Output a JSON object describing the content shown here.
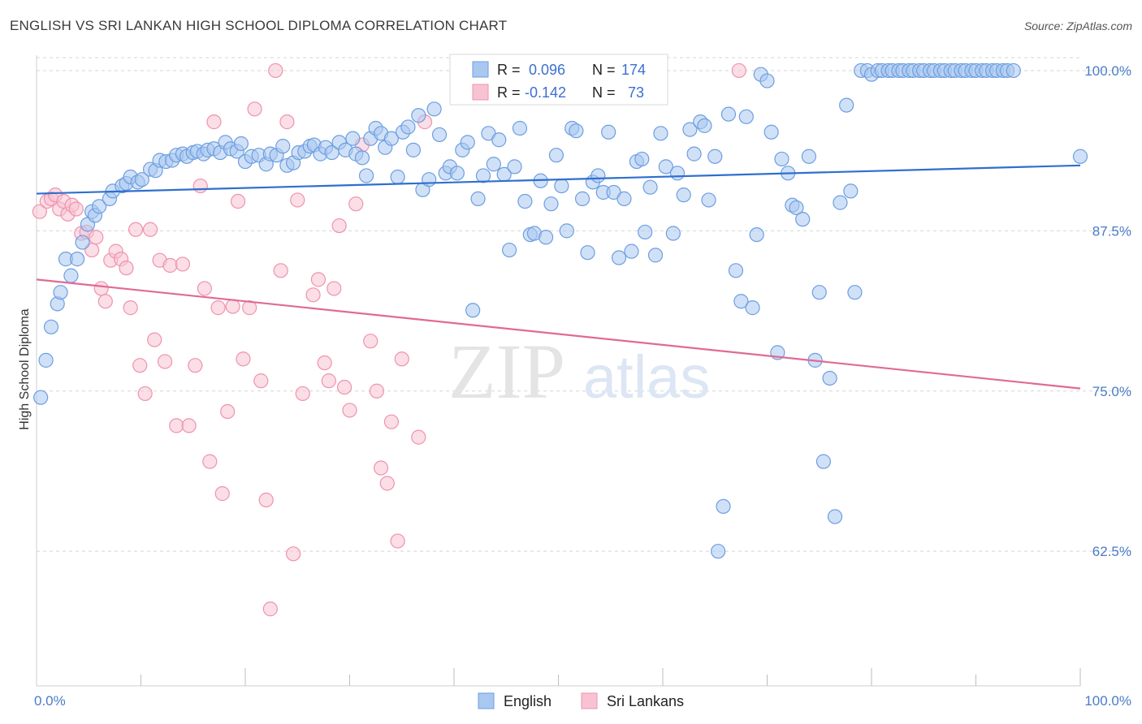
{
  "title": "ENGLISH VS SRI LANKAN HIGH SCHOOL DIPLOMA CORRELATION CHART",
  "source": "Source: ZipAtlas.com",
  "watermark": {
    "zip": "ZIP",
    "atlas": "atlas"
  },
  "legend_top": {
    "english": {
      "r_label": "R =",
      "r_value": "0.096",
      "n_label": "N =",
      "n_value": "174"
    },
    "srilankan": {
      "r_label": "R =",
      "r_value": "-0.142",
      "n_label": "N =",
      "n_value": "73"
    }
  },
  "legend_bottom": {
    "english": "English",
    "srilankan": "Sri Lankans"
  },
  "colors": {
    "english_fill": "#a9c8f0",
    "english_stroke": "#6d9ee0",
    "english_line": "#2f6fcf",
    "srilankan_fill": "#f7c3d2",
    "srilankan_stroke": "#ee93ae",
    "srilankan_line": "#e06a94",
    "tick_text": "#4a7cc7",
    "grid": "#d5d5d5"
  },
  "chart_data": {
    "type": "scatter",
    "title": "ENGLISH VS SRI LANKAN HIGH SCHOOL DIPLOMA CORRELATION CHART",
    "xlabel": "",
    "ylabel": "High School Diploma",
    "xlim": [
      0,
      100
    ],
    "ylim": [
      52,
      101.2
    ],
    "x_tick_labels": [
      "0.0%",
      "100.0%"
    ],
    "y_ticks": [
      100,
      87.5,
      75,
      62.5
    ],
    "y_tick_labels": [
      "100.0%",
      "87.5%",
      "75.0%",
      "62.5%"
    ],
    "grid": true,
    "legend_position": "top-center",
    "series": [
      {
        "name": "English",
        "r": 0.096,
        "n": 174,
        "trend": {
          "x": [
            0,
            100
          ],
          "y": [
            90.4,
            92.6
          ]
        },
        "points": [
          [
            0.4,
            74.5
          ],
          [
            0.9,
            77.4
          ],
          [
            1.4,
            80.0
          ],
          [
            2.0,
            81.8
          ],
          [
            2.3,
            82.7
          ],
          [
            2.8,
            85.3
          ],
          [
            3.3,
            84.0
          ],
          [
            3.9,
            85.3
          ],
          [
            4.4,
            86.6
          ],
          [
            4.9,
            88.0
          ],
          [
            5.3,
            89.0
          ],
          [
            5.6,
            88.7
          ],
          [
            6.0,
            89.4
          ],
          [
            7.0,
            90.0
          ],
          [
            7.3,
            90.6
          ],
          [
            8.2,
            91.0
          ],
          [
            8.6,
            91.2
          ],
          [
            9.0,
            91.7
          ],
          [
            9.7,
            91.3
          ],
          [
            10.1,
            91.5
          ],
          [
            10.9,
            92.3
          ],
          [
            11.4,
            92.2
          ],
          [
            11.8,
            93.0
          ],
          [
            12.4,
            92.9
          ],
          [
            13.0,
            93.0
          ],
          [
            13.4,
            93.4
          ],
          [
            14.0,
            93.5
          ],
          [
            14.4,
            93.3
          ],
          [
            15.0,
            93.6
          ],
          [
            15.4,
            93.7
          ],
          [
            16.0,
            93.5
          ],
          [
            16.4,
            93.8
          ],
          [
            17.0,
            93.9
          ],
          [
            17.6,
            93.6
          ],
          [
            18.1,
            94.4
          ],
          [
            18.6,
            93.9
          ],
          [
            19.2,
            93.7
          ],
          [
            19.6,
            94.3
          ],
          [
            20.0,
            92.9
          ],
          [
            20.6,
            93.3
          ],
          [
            21.3,
            93.4
          ],
          [
            22.0,
            92.7
          ],
          [
            22.4,
            93.5
          ],
          [
            23.0,
            93.4
          ],
          [
            23.6,
            94.1
          ],
          [
            24.0,
            92.6
          ],
          [
            24.6,
            92.8
          ],
          [
            25.1,
            93.6
          ],
          [
            25.7,
            93.7
          ],
          [
            26.2,
            94.1
          ],
          [
            26.6,
            94.2
          ],
          [
            27.2,
            93.5
          ],
          [
            27.7,
            94.0
          ],
          [
            28.3,
            93.6
          ],
          [
            29.0,
            94.4
          ],
          [
            29.6,
            93.8
          ],
          [
            30.3,
            94.7
          ],
          [
            30.6,
            93.5
          ],
          [
            31.2,
            93.2
          ],
          [
            31.6,
            91.8
          ],
          [
            32.0,
            94.7
          ],
          [
            32.5,
            95.5
          ],
          [
            33.0,
            95.1
          ],
          [
            33.4,
            94.0
          ],
          [
            34.0,
            94.7
          ],
          [
            34.6,
            91.7
          ],
          [
            35.1,
            95.2
          ],
          [
            35.6,
            95.6
          ],
          [
            36.1,
            93.8
          ],
          [
            36.6,
            96.5
          ],
          [
            37.0,
            90.7
          ],
          [
            37.6,
            91.5
          ],
          [
            38.1,
            97.0
          ],
          [
            38.6,
            95.0
          ],
          [
            39.2,
            92.0
          ],
          [
            39.6,
            92.5
          ],
          [
            40.3,
            92.0
          ],
          [
            40.8,
            93.8
          ],
          [
            41.3,
            94.4
          ],
          [
            41.8,
            81.3
          ],
          [
            42.3,
            90.0
          ],
          [
            42.8,
            91.8
          ],
          [
            43.3,
            95.1
          ],
          [
            43.8,
            92.7
          ],
          [
            44.3,
            94.6
          ],
          [
            44.8,
            91.9
          ],
          [
            45.3,
            86.0
          ],
          [
            45.8,
            92.5
          ],
          [
            46.3,
            95.5
          ],
          [
            46.8,
            89.8
          ],
          [
            47.3,
            87.2
          ],
          [
            47.7,
            87.3
          ],
          [
            48.3,
            91.4
          ],
          [
            48.8,
            87.0
          ],
          [
            49.3,
            89.6
          ],
          [
            49.8,
            93.4
          ],
          [
            50.3,
            91.0
          ],
          [
            50.8,
            87.5
          ],
          [
            51.3,
            95.5
          ],
          [
            51.7,
            95.3
          ],
          [
            52.3,
            90.0
          ],
          [
            52.8,
            85.8
          ],
          [
            53.3,
            91.3
          ],
          [
            53.8,
            91.8
          ],
          [
            54.3,
            90.5
          ],
          [
            54.8,
            95.2
          ],
          [
            55.3,
            90.5
          ],
          [
            55.8,
            85.4
          ],
          [
            56.3,
            90.0
          ],
          [
            57.0,
            85.9
          ],
          [
            57.5,
            92.9
          ],
          [
            58.0,
            93.1
          ],
          [
            58.3,
            87.4
          ],
          [
            58.8,
            90.9
          ],
          [
            59.3,
            85.6
          ],
          [
            59.8,
            95.1
          ],
          [
            60.3,
            92.5
          ],
          [
            61.0,
            87.3
          ],
          [
            61.4,
            92.0
          ],
          [
            62.0,
            90.3
          ],
          [
            62.6,
            95.4
          ],
          [
            63.0,
            93.5
          ],
          [
            63.6,
            96.0
          ],
          [
            64.0,
            95.7
          ],
          [
            64.4,
            89.9
          ],
          [
            65.0,
            93.3
          ],
          [
            65.3,
            62.5
          ],
          [
            65.8,
            66.0
          ],
          [
            66.3,
            96.6
          ],
          [
            67.0,
            84.4
          ],
          [
            67.5,
            82.0
          ],
          [
            68.0,
            96.4
          ],
          [
            68.6,
            81.5
          ],
          [
            69.0,
            87.2
          ],
          [
            69.4,
            99.7
          ],
          [
            70.0,
            99.2
          ],
          [
            70.4,
            95.2
          ],
          [
            71.0,
            78.0
          ],
          [
            71.4,
            93.1
          ],
          [
            72.0,
            92.0
          ],
          [
            72.4,
            89.5
          ],
          [
            72.8,
            89.3
          ],
          [
            73.4,
            88.4
          ],
          [
            74.0,
            93.3
          ],
          [
            74.6,
            77.4
          ],
          [
            75.0,
            82.7
          ],
          [
            75.4,
            69.5
          ],
          [
            76.0,
            76.0
          ],
          [
            76.5,
            65.2
          ],
          [
            77.0,
            89.7
          ],
          [
            77.6,
            97.3
          ],
          [
            78.0,
            90.6
          ],
          [
            78.4,
            82.7
          ],
          [
            79.0,
            100.0
          ],
          [
            79.6,
            100.0
          ],
          [
            80.0,
            99.7
          ],
          [
            80.6,
            100.0
          ],
          [
            81.0,
            100.0
          ],
          [
            81.6,
            100.0
          ],
          [
            82.0,
            100.0
          ],
          [
            82.6,
            100.0
          ],
          [
            83.0,
            100.0
          ],
          [
            83.6,
            100.0
          ],
          [
            84.0,
            100.0
          ],
          [
            84.6,
            100.0
          ],
          [
            85.0,
            100.0
          ],
          [
            85.6,
            100.0
          ],
          [
            86.0,
            100.0
          ],
          [
            86.6,
            100.0
          ],
          [
            87.0,
            100.0
          ],
          [
            87.6,
            100.0
          ],
          [
            88.0,
            100.0
          ],
          [
            88.6,
            100.0
          ],
          [
            89.0,
            100.0
          ],
          [
            89.6,
            100.0
          ],
          [
            90.0,
            100.0
          ],
          [
            90.6,
            100.0
          ],
          [
            91.0,
            100.0
          ],
          [
            91.6,
            100.0
          ],
          [
            92.0,
            100.0
          ],
          [
            92.6,
            100.0
          ],
          [
            93.0,
            100.0
          ],
          [
            93.6,
            100.0
          ],
          [
            100.0,
            93.3
          ]
        ]
      },
      {
        "name": "Sri Lankans",
        "r": -0.142,
        "n": 73,
        "trend": {
          "x": [
            0,
            100
          ],
          "y": [
            83.7,
            75.2
          ]
        },
        "points": [
          [
            0.3,
            89.0
          ],
          [
            1.0,
            89.8
          ],
          [
            1.4,
            90.0
          ],
          [
            1.8,
            90.3
          ],
          [
            2.2,
            89.2
          ],
          [
            2.6,
            89.8
          ],
          [
            3.0,
            88.8
          ],
          [
            3.4,
            89.5
          ],
          [
            3.8,
            89.2
          ],
          [
            4.3,
            87.3
          ],
          [
            4.8,
            87.4
          ],
          [
            5.3,
            86.0
          ],
          [
            5.7,
            87.0
          ],
          [
            6.2,
            83.0
          ],
          [
            6.6,
            82.0
          ],
          [
            7.1,
            85.2
          ],
          [
            7.6,
            85.9
          ],
          [
            8.1,
            85.3
          ],
          [
            8.6,
            84.6
          ],
          [
            9.0,
            81.5
          ],
          [
            9.5,
            87.6
          ],
          [
            9.9,
            77.0
          ],
          [
            10.4,
            74.8
          ],
          [
            10.9,
            87.6
          ],
          [
            11.3,
            79.0
          ],
          [
            11.8,
            85.2
          ],
          [
            12.3,
            77.3
          ],
          [
            12.8,
            84.8
          ],
          [
            13.4,
            72.3
          ],
          [
            14.0,
            84.9
          ],
          [
            14.6,
            72.3
          ],
          [
            15.2,
            77.0
          ],
          [
            15.7,
            91.0
          ],
          [
            16.1,
            83.0
          ],
          [
            16.6,
            69.5
          ],
          [
            17.0,
            96.0
          ],
          [
            17.4,
            81.5
          ],
          [
            17.8,
            67.0
          ],
          [
            18.3,
            73.4
          ],
          [
            18.8,
            81.6
          ],
          [
            19.3,
            89.8
          ],
          [
            19.8,
            77.5
          ],
          [
            20.4,
            81.5
          ],
          [
            20.9,
            97.0
          ],
          [
            21.5,
            75.8
          ],
          [
            22.0,
            66.5
          ],
          [
            22.4,
            58.0
          ],
          [
            22.9,
            100.0
          ],
          [
            23.4,
            84.4
          ],
          [
            24.0,
            96.0
          ],
          [
            24.6,
            62.3
          ],
          [
            25.0,
            89.9
          ],
          [
            25.5,
            74.8
          ],
          [
            26.5,
            82.5
          ],
          [
            27.0,
            83.7
          ],
          [
            27.6,
            77.2
          ],
          [
            28.0,
            75.8
          ],
          [
            28.5,
            83.0
          ],
          [
            29.0,
            87.9
          ],
          [
            29.5,
            75.3
          ],
          [
            30.0,
            73.5
          ],
          [
            30.6,
            89.6
          ],
          [
            31.2,
            94.2
          ],
          [
            32.0,
            78.9
          ],
          [
            32.6,
            75.0
          ],
          [
            33.0,
            69.0
          ],
          [
            33.6,
            67.8
          ],
          [
            34.0,
            72.6
          ],
          [
            34.6,
            63.3
          ],
          [
            35.0,
            77.5
          ],
          [
            36.6,
            71.4
          ],
          [
            37.2,
            96.0
          ],
          [
            67.3,
            100.0
          ]
        ]
      }
    ]
  }
}
